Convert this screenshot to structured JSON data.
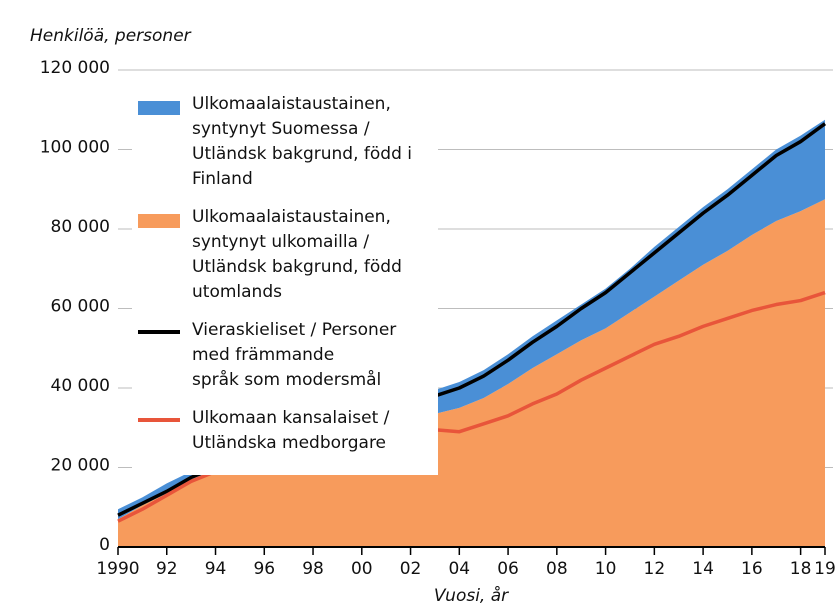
{
  "chart_data": {
    "type": "area",
    "stacked": true,
    "y_label": "Henkilöä, personer",
    "x_label": "Vuosi, år",
    "x": [
      1990,
      1991,
      1992,
      1993,
      1994,
      1995,
      1996,
      1997,
      1998,
      1999,
      2000,
      2001,
      2002,
      2003,
      2004,
      2005,
      2006,
      2007,
      2008,
      2009,
      2010,
      2011,
      2012,
      2013,
      2014,
      2015,
      2016,
      2017,
      2018,
      2019
    ],
    "xlim": [
      1990,
      2019
    ],
    "xticks": [
      1990,
      {
        "value": 1992,
        "label": "92"
      },
      {
        "value": 1994,
        "label": "94"
      },
      {
        "value": 1996,
        "label": "96"
      },
      {
        "value": 1998,
        "label": "98"
      },
      {
        "value": 2000,
        "label": "00"
      },
      {
        "value": 2002,
        "label": "02"
      },
      {
        "value": 2004,
        "label": "04"
      },
      {
        "value": 2006,
        "label": "06"
      },
      {
        "value": 2008,
        "label": "08"
      },
      {
        "value": 2010,
        "label": "10"
      },
      {
        "value": 2012,
        "label": "12"
      },
      {
        "value": 2014,
        "label": "14"
      },
      {
        "value": 2016,
        "label": "16"
      },
      {
        "value": 2018,
        "label": "18"
      },
      {
        "value": 2019,
        "label": "19"
      }
    ],
    "ylim": [
      0,
      120000
    ],
    "yticks": [
      0,
      {
        "value": 20000,
        "label": "20 000"
      },
      {
        "value": 40000,
        "label": "40 000"
      },
      {
        "value": 60000,
        "label": "60 000"
      },
      {
        "value": 80000,
        "label": "80 000"
      },
      {
        "value": 100000,
        "label": "100 000"
      },
      {
        "value": 120000,
        "label": "120 000"
      }
    ],
    "grid": true,
    "legend": "upper left",
    "series": [
      {
        "name": "Ulkomaalaistaustainen, syntynyt Suomessa /\nUtländsk bakgrund, född i Finland",
        "kind": "area",
        "color": "#4a8fd6",
        "values": [
          2500,
          2000,
          2500,
          2000,
          2000,
          2500,
          2500,
          3500,
          4000,
          5000,
          5000,
          5000,
          5500,
          6000,
          6500,
          7000,
          7500,
          8000,
          8500,
          9000,
          10000,
          11000,
          12500,
          13500,
          14500,
          15500,
          16500,
          18000,
          19000,
          20000
        ]
      },
      {
        "name": "Ulkomaalaistaustainen, syntynyt ulkomailla /\nUtländsk bakgrund, född utomlands",
        "kind": "area",
        "color": "#f79b5c",
        "values": [
          7000,
          10500,
          13500,
          17000,
          19500,
          21500,
          23000,
          24500,
          26000,
          27000,
          28000,
          30500,
          32000,
          33500,
          35000,
          37500,
          41000,
          45000,
          48500,
          52000,
          55000,
          59000,
          63000,
          67000,
          71000,
          74500,
          78500,
          82000,
          84500,
          87500
        ]
      },
      {
        "name": "Vieraskieliset / Personer med främmande\nspråk som modersmål",
        "kind": "line",
        "color": "#000000",
        "values": [
          8000,
          11000,
          14000,
          17500,
          20000,
          22000,
          23000,
          25500,
          27500,
          29500,
          30500,
          33500,
          35500,
          38000,
          40000,
          43000,
          47000,
          51500,
          55500,
          60000,
          64000,
          69000,
          74000,
          79000,
          84000,
          88500,
          93500,
          98500,
          102000,
          106500
        ]
      },
      {
        "name": "Ulkomaan kansalaiset /\nUtländska medborgare",
        "kind": "line",
        "color": "#e8553a",
        "values": [
          6500,
          9500,
          13000,
          16500,
          19000,
          21000,
          22000,
          24000,
          25500,
          26000,
          26500,
          28000,
          29000,
          29500,
          29000,
          31000,
          33000,
          36000,
          38500,
          42000,
          45000,
          48000,
          51000,
          53000,
          55500,
          57500,
          59500,
          61000,
          62000,
          64000
        ]
      }
    ]
  }
}
